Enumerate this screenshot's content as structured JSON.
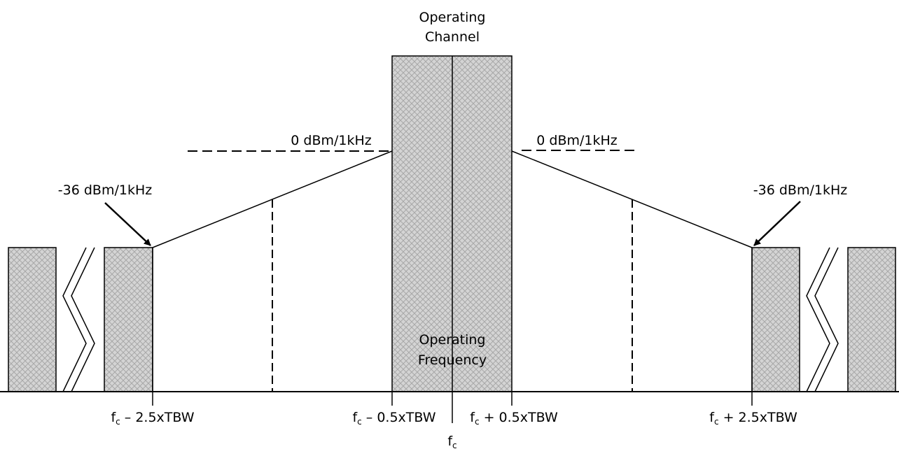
{
  "channel_label": [
    "Operating",
    "Channel"
  ],
  "frequency_label": [
    "Operating",
    "Frequency"
  ],
  "levels": {
    "inner_left": "0 dBm/1kHz",
    "inner_right": "0 dBm/1kHz",
    "outer_left": "-36 dBm/1kHz",
    "outer_right": "-36 dBm/1kHz"
  },
  "frequency_labels": [
    {
      "base": "f",
      "sub": "c",
      "rest": " – 2.5xTBW"
    },
    {
      "base": "f",
      "sub": "c",
      "rest": " – 0.5xTBW"
    },
    {
      "base": "f",
      "sub": "c",
      "rest": " + 0.5xTBW"
    },
    {
      "base": "f",
      "sub": "c",
      "rest": " + 2.5xTBW"
    },
    {
      "base": "f",
      "sub": "c"
    }
  ]
}
